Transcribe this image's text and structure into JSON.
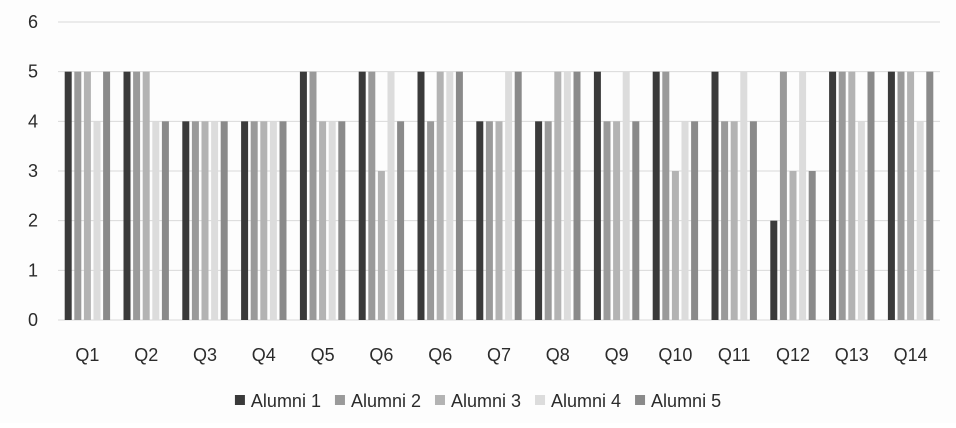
{
  "chart_data": {
    "type": "bar",
    "title": "",
    "xlabel": "",
    "ylabel": "",
    "ylim": [
      0,
      6
    ],
    "yticks": [
      "0",
      "1",
      "2",
      "3",
      "4",
      "5",
      "6"
    ],
    "grid": true,
    "legend_position": "bottom",
    "categories": [
      "Q1",
      "Q2",
      "Q3",
      "Q4",
      "Q5",
      "Q6",
      "Q6",
      "Q7",
      "Q8",
      "Q9",
      "Q10",
      "Q11",
      "Q12",
      "Q13",
      "Q14"
    ],
    "series": [
      {
        "name": "Alumni 1",
        "color": "#3a3a3a",
        "values": [
          5,
          5,
          4,
          4,
          5,
          5,
          5,
          4,
          4,
          5,
          5,
          5,
          2,
          5,
          5
        ]
      },
      {
        "name": "Alumni 2",
        "color": "#9a9a9a",
        "values": [
          5,
          5,
          4,
          4,
          5,
          5,
          4,
          4,
          4,
          4,
          5,
          4,
          5,
          5,
          5
        ]
      },
      {
        "name": "Alumni 3",
        "color": "#b3b3b3",
        "values": [
          5,
          5,
          4,
          4,
          4,
          3,
          5,
          4,
          5,
          4,
          3,
          4,
          3,
          5,
          5
        ]
      },
      {
        "name": "Alumni 4",
        "color": "#dcdcdc",
        "values": [
          4,
          4,
          4,
          4,
          4,
          5,
          5,
          5,
          5,
          5,
          4,
          5,
          5,
          4,
          4
        ]
      },
      {
        "name": "Alumni 5",
        "color": "#8a8a8a",
        "values": [
          5,
          4,
          4,
          4,
          4,
          4,
          5,
          5,
          5,
          4,
          4,
          4,
          3,
          5,
          5
        ]
      }
    ]
  }
}
